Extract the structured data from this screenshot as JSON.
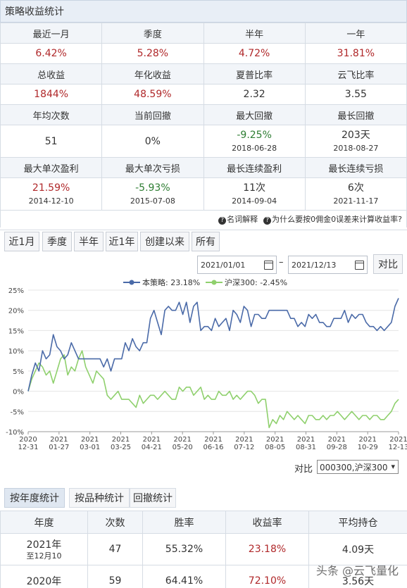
{
  "title": "策略收益统计",
  "stats": [
    {
      "labels": [
        "最近一月",
        "季度",
        "半年",
        "一年"
      ],
      "values": [
        {
          "v": "6.42%",
          "c": "red"
        },
        {
          "v": "5.28%",
          "c": "red"
        },
        {
          "v": "4.72%",
          "c": "red"
        },
        {
          "v": "31.81%",
          "c": "red"
        }
      ]
    },
    {
      "labels": [
        "总收益",
        "年化收益",
        "夏普比率",
        "云飞比率"
      ],
      "values": [
        {
          "v": "1844%",
          "c": "red"
        },
        {
          "v": "48.59%",
          "c": "red"
        },
        {
          "v": "2.32",
          "c": "dark"
        },
        {
          "v": "3.55",
          "c": "dark"
        }
      ]
    },
    {
      "labels": [
        "年均次数",
        "当前回撤",
        "最大回撤",
        "最长回撤"
      ],
      "values": [
        {
          "v": "51",
          "c": "dark",
          "s": ""
        },
        {
          "v": "0%",
          "c": "dark",
          "s": ""
        },
        {
          "v": "-9.25%",
          "c": "green",
          "s": "2018-06-28"
        },
        {
          "v": "203天",
          "c": "dark",
          "s": "2018-08-27"
        }
      ]
    },
    {
      "labels": [
        "最大单次盈利",
        "最大单次亏损",
        "最长连续盈利",
        "最长连续亏损"
      ],
      "values": [
        {
          "v": "21.59%",
          "c": "red",
          "s": "2014-12-10"
        },
        {
          "v": "-5.93%",
          "c": "green",
          "s": "2015-07-08"
        },
        {
          "v": "11次",
          "c": "dark",
          "s": "2014-09-04"
        },
        {
          "v": "6次",
          "c": "dark",
          "s": "2021-11-17"
        }
      ]
    }
  ],
  "links": {
    "glossary": "名词解释",
    "why": "为什么要按0佣金0误差来计算收益率?"
  },
  "period_buttons": [
    "近1月",
    "季度",
    "半年",
    "近1年",
    "创建以来",
    "所有"
  ],
  "date_range": {
    "start": "2021/01/01",
    "sep": "–",
    "end": "2021/12/13",
    "compare_button": "对比"
  },
  "compare": {
    "label": "对比",
    "selected": "000300,沪深300"
  },
  "tabs": [
    "按年度统计",
    "按品种统计",
    "回撤统计"
  ],
  "year_table": {
    "headers": [
      "年度",
      "次数",
      "胜率",
      "收益率",
      "平均持仓"
    ],
    "rows": [
      {
        "year": "2021年",
        "sub": "至12月10",
        "count": "47",
        "win": "55.32%",
        "ret": "23.18%",
        "hold": "4.09天"
      },
      {
        "year": "2020年",
        "sub": "",
        "count": "59",
        "win": "64.41%",
        "ret": "72.10%",
        "hold": "3.56天"
      }
    ]
  },
  "watermark": "头条 @云飞量化",
  "chart_data": {
    "type": "line",
    "legend": [
      "本策略: 23.18%",
      "沪深300: -2.45%"
    ],
    "legend_position": "top-center",
    "grid": true,
    "x_ticks": [
      "2020\n12-31",
      "2021\n01-27",
      "2021\n03-01",
      "2021\n03-25",
      "2021\n04-21",
      "2021\n05-20",
      "2021\n06-16",
      "2021\n07-12",
      "2021\n08-05",
      "2021\n08-31",
      "2021\n09-28",
      "2021\n10-29",
      "2021\n12-13"
    ],
    "y_ticks": [
      "25%",
      "20%",
      "15%",
      "10%",
      "5%",
      "0%",
      "-5%",
      "-10%"
    ],
    "ylim": [
      -10,
      25
    ],
    "colors": {
      "strategy": "#4a6aa8",
      "benchmark": "#8fd06d"
    },
    "series": [
      {
        "name": "本策略",
        "color": "#4a6aa8",
        "values": [
          0,
          4,
          7,
          5,
          10,
          8,
          9,
          14,
          11,
          10,
          8,
          9,
          12,
          10,
          8,
          8,
          8,
          8,
          8,
          8,
          8,
          6,
          8,
          5,
          8,
          8,
          8,
          12,
          10,
          13,
          11,
          10,
          12,
          12,
          18,
          20,
          17,
          14,
          20,
          21,
          20,
          20,
          22,
          19,
          22,
          17,
          21,
          22,
          15,
          16,
          16,
          15,
          18,
          16,
          17,
          18,
          15,
          20,
          19,
          17,
          21,
          20,
          16,
          19,
          19,
          18,
          18,
          20,
          20,
          20,
          20,
          20,
          20,
          18,
          18,
          16,
          17,
          16,
          19,
          18,
          19,
          17,
          17,
          16,
          16,
          18,
          18,
          18,
          20,
          17,
          19,
          18,
          19,
          19,
          17,
          16,
          16,
          15,
          16,
          15,
          16,
          17,
          21,
          23
        ]
      },
      {
        "name": "沪深300",
        "color": "#8fd06d",
        "values": [
          0,
          3,
          5,
          7,
          6,
          4,
          5,
          2,
          5,
          8,
          9,
          4,
          6,
          5,
          8,
          10,
          6,
          4,
          2,
          5,
          4,
          3,
          -1,
          -2,
          -1,
          0,
          -2,
          -2,
          -2,
          -3,
          -4,
          -1,
          -3,
          -2,
          -1,
          -1,
          -2,
          -1,
          0,
          -1,
          -2,
          -2,
          1,
          0,
          1,
          1,
          -1,
          0,
          1,
          -2,
          -1,
          -2,
          -2,
          0,
          -1,
          -1,
          0,
          -2,
          -1,
          -2,
          -1,
          0,
          0,
          -1,
          -3,
          -2,
          -2,
          -9,
          -7,
          -8,
          -6,
          -7,
          -5,
          -6,
          -7,
          -6,
          -7,
          -8,
          -6,
          -6,
          -7,
          -7,
          -6,
          -7,
          -6,
          -6,
          -5,
          -6,
          -7,
          -6,
          -5,
          -6,
          -7,
          -6,
          -6,
          -7,
          -6,
          -6,
          -7,
          -7,
          -6,
          -5,
          -3,
          -2
        ]
      }
    ]
  }
}
